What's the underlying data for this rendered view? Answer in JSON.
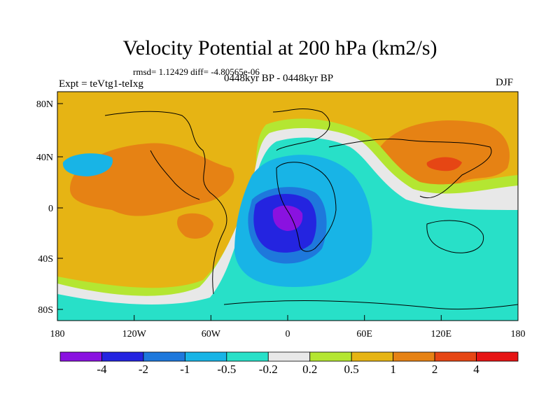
{
  "title": "Velocity Potential at 200 hPa (km2/s)",
  "stats": "rmsd= 1.12429 diff= -4.80565e-06",
  "experiment": "Expt = teVtg1-teIxg",
  "period": "0448kyr BP - 0448kyr BP",
  "season": "DJF",
  "y_ticks": [
    "80N",
    "40N",
    "0",
    "40S",
    "80S"
  ],
  "x_ticks": [
    "180",
    "120W",
    "60W",
    "0",
    "60E",
    "120E",
    "180"
  ],
  "colorbar": {
    "labels": [
      "-4",
      "-2",
      "-1",
      "-0.5",
      "-0.2",
      "0.2",
      "0.5",
      "1",
      "2",
      "4"
    ],
    "colors": [
      "#8a12e0",
      "#2424e0",
      "#1e78dc",
      "#18b4e6",
      "#28e0c8",
      "#e8e8e8",
      "#b4e632",
      "#e6b414",
      "#e68214",
      "#e64614",
      "#e61414"
    ]
  }
}
